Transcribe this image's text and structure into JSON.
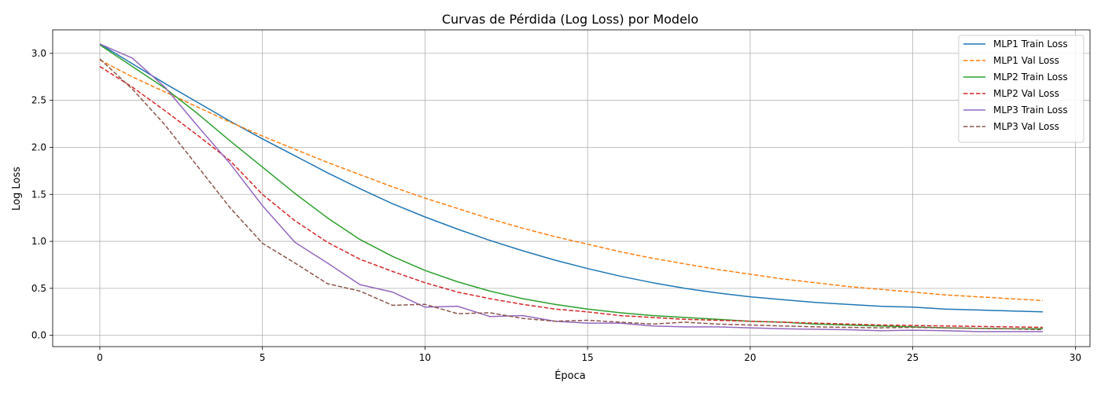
{
  "chart_data": {
    "type": "line",
    "title": "Curvas de Pérdida (Log Loss) por Modelo",
    "xlabel": "Época",
    "ylabel": "Log Loss",
    "xlim": [
      -1.45,
      30.45
    ],
    "ylim": [
      -0.12,
      3.25
    ],
    "xticks": [
      0,
      5,
      10,
      15,
      20,
      25,
      30
    ],
    "yticks": [
      0.0,
      0.5,
      1.0,
      1.5,
      2.0,
      2.5,
      3.0
    ],
    "xtick_labels": [
      "0",
      "5",
      "10",
      "15",
      "20",
      "25",
      "30"
    ],
    "ytick_labels": [
      "0.0",
      "0.5",
      "1.0",
      "1.5",
      "2.0",
      "2.5",
      "3.0"
    ],
    "grid": true,
    "legend_position": "top-right",
    "x": [
      0,
      1,
      2,
      3,
      4,
      5,
      6,
      7,
      8,
      9,
      10,
      11,
      12,
      13,
      14,
      15,
      16,
      17,
      18,
      19,
      20,
      21,
      22,
      23,
      24,
      25,
      26,
      27,
      28,
      29
    ],
    "series": [
      {
        "name": "MLP1 Train Loss",
        "color": "#1f77b4",
        "dash": "solid",
        "values": [
          3.1,
          2.89,
          2.68,
          2.48,
          2.28,
          2.09,
          1.91,
          1.73,
          1.56,
          1.4,
          1.26,
          1.13,
          1.01,
          0.9,
          0.8,
          0.71,
          0.63,
          0.56,
          0.5,
          0.45,
          0.41,
          0.38,
          0.35,
          0.33,
          0.31,
          0.3,
          0.28,
          0.27,
          0.26,
          0.25
        ]
      },
      {
        "name": "MLP1 Val Loss",
        "color": "#ff7f0e",
        "dash": "dashed",
        "values": [
          2.93,
          2.75,
          2.59,
          2.43,
          2.27,
          2.12,
          1.98,
          1.84,
          1.71,
          1.58,
          1.46,
          1.35,
          1.24,
          1.14,
          1.05,
          0.97,
          0.89,
          0.82,
          0.76,
          0.7,
          0.65,
          0.6,
          0.56,
          0.52,
          0.49,
          0.46,
          0.43,
          0.41,
          0.39,
          0.37
        ]
      },
      {
        "name": "MLP2 Train Loss",
        "color": "#2ca02c",
        "dash": "solid",
        "values": [
          3.09,
          2.86,
          2.63,
          2.36,
          2.07,
          1.79,
          1.51,
          1.25,
          1.02,
          0.84,
          0.69,
          0.57,
          0.47,
          0.39,
          0.33,
          0.28,
          0.24,
          0.21,
          0.19,
          0.17,
          0.15,
          0.14,
          0.12,
          0.11,
          0.1,
          0.09,
          0.08,
          0.075,
          0.07,
          0.07
        ]
      },
      {
        "name": "MLP2 Val Loss",
        "color": "#d62728",
        "dash": "dashed",
        "values": [
          2.86,
          2.64,
          2.39,
          2.13,
          1.86,
          1.5,
          1.22,
          0.99,
          0.81,
          0.68,
          0.56,
          0.46,
          0.39,
          0.33,
          0.28,
          0.25,
          0.21,
          0.19,
          0.17,
          0.16,
          0.15,
          0.14,
          0.13,
          0.12,
          0.11,
          0.105,
          0.1,
          0.095,
          0.09,
          0.085
        ]
      },
      {
        "name": "MLP3 Train Loss",
        "color": "#9467bd",
        "dash": "solid",
        "values": [
          3.1,
          2.95,
          2.64,
          2.23,
          1.83,
          1.38,
          0.99,
          0.77,
          0.54,
          0.46,
          0.3,
          0.31,
          0.2,
          0.21,
          0.15,
          0.13,
          0.13,
          0.1,
          0.09,
          0.09,
          0.08,
          0.07,
          0.065,
          0.06,
          0.05,
          0.055,
          0.05,
          0.04,
          0.04,
          0.04
        ]
      },
      {
        "name": "MLP3 Val Loss",
        "color": "#8c564b",
        "dash": "dashed",
        "values": [
          2.94,
          2.62,
          2.24,
          1.8,
          1.36,
          0.98,
          0.77,
          0.55,
          0.47,
          0.32,
          0.33,
          0.23,
          0.24,
          0.18,
          0.15,
          0.16,
          0.14,
          0.12,
          0.14,
          0.12,
          0.11,
          0.1,
          0.09,
          0.085,
          0.08,
          0.085,
          0.08,
          0.075,
          0.07,
          0.06
        ]
      }
    ]
  }
}
